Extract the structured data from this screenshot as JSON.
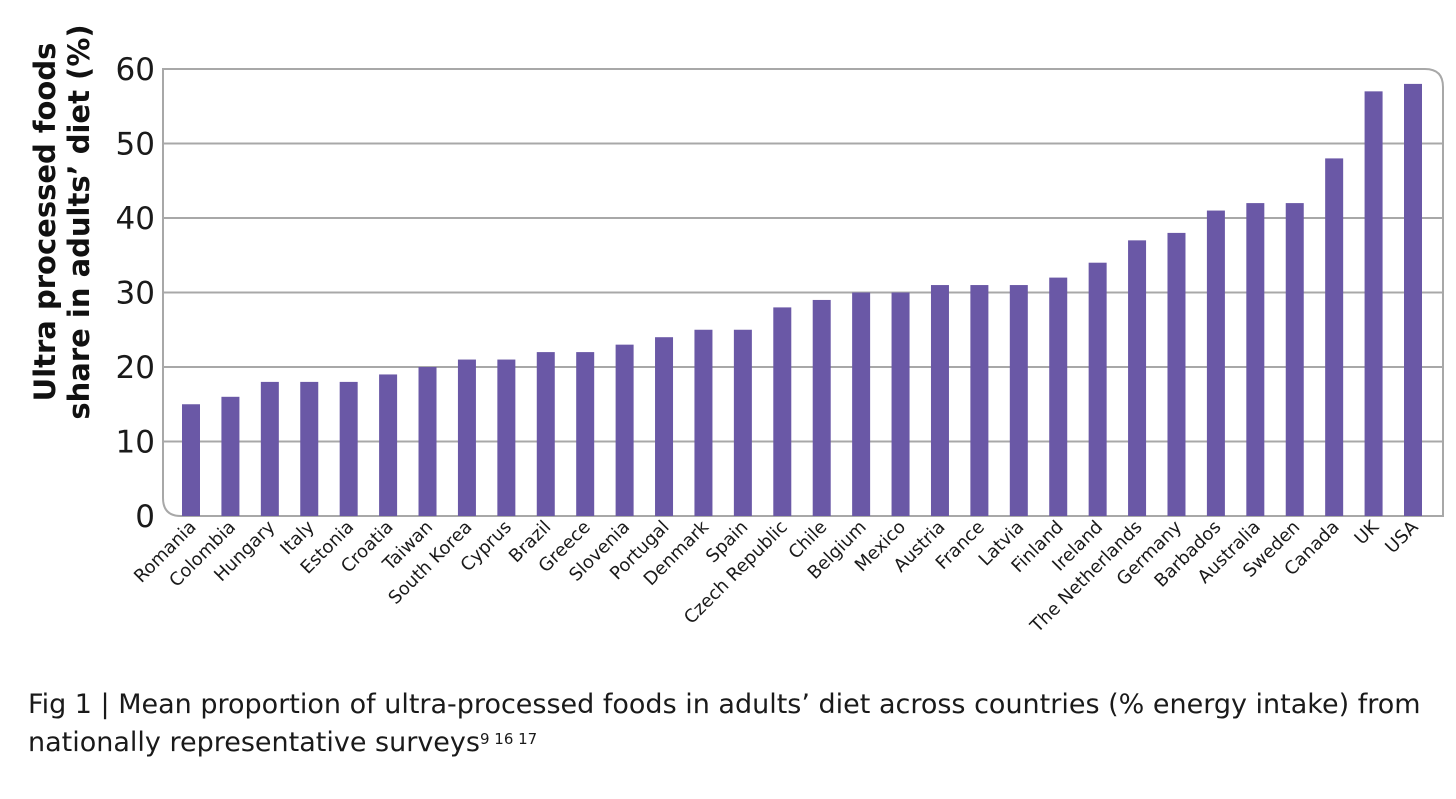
{
  "chart_data": {
    "type": "bar",
    "title": "",
    "xlabel": "",
    "ylabel": "Ultra processed foods share in adults’ diet (%)",
    "ylabel_lines": [
      "Ultra processed foods",
      "share in adults’ diet (%)"
    ],
    "ylim": [
      0,
      60
    ],
    "yticks": [
      0,
      10,
      20,
      30,
      40,
      50,
      60
    ],
    "grid": true,
    "bar_color": "#6a58a6",
    "categories": [
      "Romania",
      "Colombia",
      "Hungary",
      "Italy",
      "Estonia",
      "Croatia",
      "Taiwan",
      "South Korea",
      "Cyprus",
      "Brazil",
      "Greece",
      "Slovenia",
      "Portugal",
      "Denmark",
      "Spain",
      "Czech Republic",
      "Chile",
      "Belgium",
      "Mexico",
      "Austria",
      "France",
      "Latvia",
      "Finland",
      "Ireland",
      "The Netherlands",
      "Germany",
      "Barbados",
      "Australia",
      "Sweden",
      "Canada",
      "UK",
      "USA"
    ],
    "values": [
      15,
      16,
      18,
      18,
      18,
      19,
      20,
      21,
      21,
      22,
      22,
      23,
      24,
      25,
      25,
      28,
      29,
      30,
      30,
      31,
      31,
      31,
      32,
      34,
      37,
      38,
      41,
      42,
      42,
      48,
      57,
      58
    ]
  },
  "caption": {
    "text": "Fig 1 | Mean proportion of ultra-processed foods in adults’ diet across countries (% energy intake) from nationally representative surveys",
    "refs": "9 16 17"
  }
}
